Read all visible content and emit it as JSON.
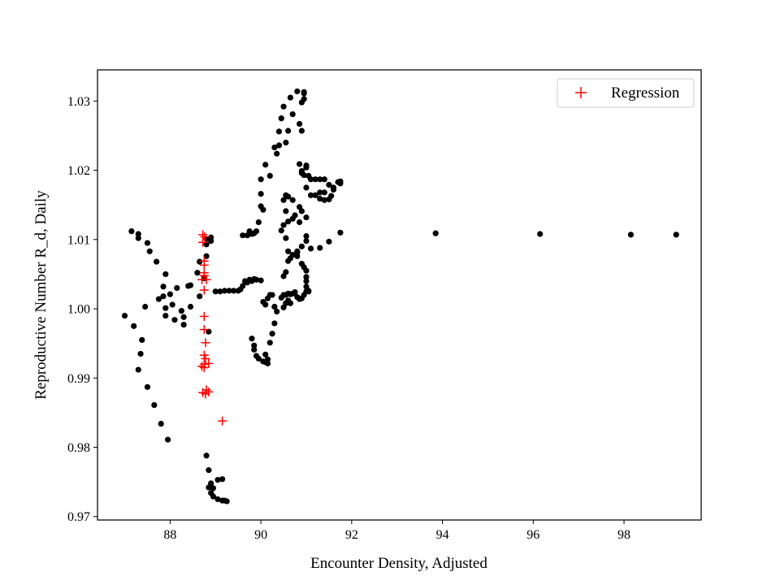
{
  "chart_data": {
    "type": "scatter",
    "title": "",
    "xlabel": "Encounter Density, Adjusted",
    "ylabel": "Reproductive Number R_d, Daily",
    "xlim": [
      86.4,
      99.7
    ],
    "ylim": [
      0.9695,
      1.0345
    ],
    "xticks": [
      88,
      90,
      92,
      94,
      96,
      98
    ],
    "yticks": [
      0.97,
      0.98,
      0.99,
      1.0,
      1.01,
      1.02,
      1.03
    ],
    "xtick_labels": [
      "88",
      "90",
      "92",
      "94",
      "96",
      "98"
    ],
    "ytick_labels": [
      "0.97",
      "0.98",
      "0.99",
      "1.00",
      "1.01",
      "1.02",
      "1.03"
    ],
    "grid": false,
    "legend": {
      "placement": "top-right",
      "entries": [
        "Regression"
      ]
    },
    "series": [
      {
        "marker": "dot",
        "color": "#000000",
        "points": [
          [
            87.0,
            0.999
          ],
          [
            87.2,
            0.9975
          ],
          [
            87.3,
            0.9912
          ],
          [
            87.35,
            0.9935
          ],
          [
            87.38,
            0.9955
          ],
          [
            87.45,
            1.0003
          ],
          [
            87.5,
            0.9887
          ],
          [
            87.65,
            0.9861
          ],
          [
            87.8,
            0.9834
          ],
          [
            87.95,
            0.9811
          ],
          [
            87.15,
            1.0112
          ],
          [
            87.3,
            1.0108
          ],
          [
            87.3,
            1.0102
          ],
          [
            87.5,
            1.0095
          ],
          [
            87.55,
            1.0083
          ],
          [
            87.7,
            1.0068
          ],
          [
            87.75,
            1.0014
          ],
          [
            87.85,
            1.0018
          ],
          [
            87.85,
            1.0032
          ],
          [
            87.9,
            1.005
          ],
          [
            87.9,
            1.0001
          ],
          [
            87.9,
            0.999
          ],
          [
            88.0,
            1.0021
          ],
          [
            88.05,
            1.0006
          ],
          [
            88.1,
            0.9984
          ],
          [
            88.15,
            1.003
          ],
          [
            88.25,
            0.9997
          ],
          [
            88.3,
            0.9988
          ],
          [
            88.3,
            0.9977
          ],
          [
            88.4,
            1.0033
          ],
          [
            88.45,
            1.0034
          ],
          [
            88.45,
            1.0003
          ],
          [
            88.6,
            1.0052
          ],
          [
            88.65,
            1.0018
          ],
          [
            88.65,
            1.0068
          ],
          [
            88.75,
            1.0044
          ],
          [
            88.8,
            1.0076
          ],
          [
            88.8,
            1.0093
          ],
          [
            88.8,
            1.0101
          ],
          [
            88.9,
            1.0103
          ],
          [
            88.9,
            1.0098
          ],
          [
            88.85,
            0.9967
          ],
          [
            88.8,
            0.9788
          ],
          [
            88.85,
            0.9767
          ],
          [
            88.9,
            0.9748
          ],
          [
            88.95,
            0.9741
          ],
          [
            89.05,
            0.9753
          ],
          [
            89.15,
            0.9754
          ],
          [
            88.85,
            0.9742
          ],
          [
            88.9,
            0.9734
          ],
          [
            88.95,
            0.9729
          ],
          [
            89.05,
            0.9725
          ],
          [
            89.15,
            0.9723
          ],
          [
            89.2,
            0.9723
          ],
          [
            89.25,
            0.9722
          ],
          [
            89.0,
            1.0025
          ],
          [
            89.1,
            1.0025
          ],
          [
            89.2,
            1.0026
          ],
          [
            89.3,
            1.0026
          ],
          [
            89.4,
            1.0026
          ],
          [
            89.5,
            1.0026
          ],
          [
            89.55,
            1.0028
          ],
          [
            89.6,
            1.0033
          ],
          [
            89.65,
            1.004
          ],
          [
            89.7,
            1.0038
          ],
          [
            89.75,
            1.0042
          ],
          [
            89.8,
            1.004
          ],
          [
            89.85,
            1.0043
          ],
          [
            89.9,
            1.0042
          ],
          [
            89.6,
            1.0106
          ],
          [
            89.7,
            1.0106
          ],
          [
            89.75,
            1.0112
          ],
          [
            89.8,
            1.0108
          ],
          [
            89.85,
            1.0109
          ],
          [
            89.9,
            1.0112
          ],
          [
            89.95,
            1.0125
          ],
          [
            90.0,
            1.0148
          ],
          [
            90.0,
            1.0166
          ],
          [
            90.0,
            1.0187
          ],
          [
            90.05,
            1.0143
          ],
          [
            90.1,
            1.0208
          ],
          [
            90.2,
            1.0192
          ],
          [
            90.3,
            1.0233
          ],
          [
            90.35,
            1.0224
          ],
          [
            90.4,
            1.0236
          ],
          [
            90.4,
            1.0256
          ],
          [
            90.45,
            1.0275
          ],
          [
            90.5,
            1.0292
          ],
          [
            90.55,
            1.024
          ],
          [
            90.6,
            1.0257
          ],
          [
            90.65,
            1.0305
          ],
          [
            90.7,
            1.0281
          ],
          [
            90.8,
            1.0314
          ],
          [
            90.85,
            1.0267
          ],
          [
            90.9,
            1.0257
          ],
          [
            90.9,
            1.0298
          ],
          [
            90.95,
            1.0303
          ],
          [
            90.95,
            1.0313
          ],
          [
            90.95,
            1.0311
          ],
          [
            90.85,
            1.0209
          ],
          [
            90.9,
            1.0199
          ],
          [
            90.9,
            1.0196
          ],
          [
            90.95,
            1.0193
          ],
          [
            91.0,
            1.0207
          ],
          [
            91.0,
            1.0204
          ],
          [
            91.05,
            1.0192
          ],
          [
            91.1,
            1.0187
          ],
          [
            91.2,
            1.0187
          ],
          [
            91.3,
            1.0187
          ],
          [
            91.4,
            1.0187
          ],
          [
            91.5,
            1.0179
          ],
          [
            91.6,
            1.0175
          ],
          [
            91.7,
            1.0183
          ],
          [
            91.75,
            1.0184
          ],
          [
            91.75,
            1.0181
          ],
          [
            91.0,
            1.0175
          ],
          [
            91.1,
            1.0164
          ],
          [
            91.2,
            1.0164
          ],
          [
            91.3,
            1.0159
          ],
          [
            91.4,
            1.0157
          ],
          [
            91.5,
            1.0158
          ],
          [
            91.55,
            1.0163
          ],
          [
            91.6,
            1.0172
          ],
          [
            91.4,
            1.0168
          ],
          [
            91.3,
            1.0168
          ],
          [
            90.5,
            1.0157
          ],
          [
            90.55,
            1.0164
          ],
          [
            90.6,
            1.0162
          ],
          [
            90.7,
            1.0157
          ],
          [
            90.55,
            1.0141
          ],
          [
            90.5,
            1.0121
          ],
          [
            90.45,
            1.0113
          ],
          [
            90.55,
            1.0102
          ],
          [
            90.6,
            1.0083
          ],
          [
            90.6,
            1.0069
          ],
          [
            90.55,
            1.0053
          ],
          [
            90.5,
            1.0047
          ],
          [
            90.65,
            1.0073
          ],
          [
            90.7,
            1.0078
          ],
          [
            90.8,
            1.0083
          ],
          [
            90.9,
            1.009
          ],
          [
            91.0,
            1.0098
          ],
          [
            91.0,
            1.0105
          ],
          [
            91.1,
            1.0087
          ],
          [
            91.3,
            1.0088
          ],
          [
            91.5,
            1.0097
          ],
          [
            91.75,
            1.011
          ],
          [
            90.6,
            1.0126
          ],
          [
            90.7,
            1.013
          ],
          [
            90.75,
            1.0135
          ],
          [
            90.85,
            1.0147
          ],
          [
            90.9,
            1.0141
          ],
          [
            91.0,
            1.0132
          ],
          [
            90.85,
            1.0125
          ],
          [
            90.8,
            1.0081
          ],
          [
            90.8,
            1.0076
          ],
          [
            90.9,
            1.0065
          ],
          [
            90.95,
            1.006
          ],
          [
            91.0,
            1.0055
          ],
          [
            91.0,
            1.0046
          ],
          [
            91.0,
            1.004
          ],
          [
            91.0,
            1.0032
          ],
          [
            91.0,
            1.0025
          ],
          [
            91.05,
            1.0026
          ],
          [
            91.05,
            1.0025
          ],
          [
            90.0,
            1.0041
          ],
          [
            90.05,
            1.001
          ],
          [
            90.1,
            1.0006
          ],
          [
            90.15,
            1.0015
          ],
          [
            90.2,
            1.002
          ],
          [
            90.25,
            1.002
          ],
          [
            90.3,
            1.0003
          ],
          [
            90.35,
            0.9996
          ],
          [
            90.45,
            1.0016
          ],
          [
            90.5,
            1.002
          ],
          [
            90.55,
            1.002
          ],
          [
            90.6,
            1.0022
          ],
          [
            90.6,
            1.0012
          ],
          [
            90.65,
            1.0021
          ],
          [
            90.7,
            1.0022
          ],
          [
            90.75,
            1.0024
          ],
          [
            90.8,
            1.0017
          ],
          [
            90.85,
            1.0014
          ],
          [
            90.9,
            1.0015
          ],
          [
            90.95,
            1.002
          ],
          [
            90.5,
            1.0002
          ],
          [
            90.55,
            1.0008
          ],
          [
            90.65,
            1.0008
          ],
          [
            89.8,
            0.9957
          ],
          [
            89.85,
            0.9941
          ],
          [
            89.85,
            0.9947
          ],
          [
            89.9,
            0.9932
          ],
          [
            89.95,
            0.9928
          ],
          [
            90.05,
            0.9924
          ],
          [
            90.1,
            0.9923
          ],
          [
            90.15,
            0.9927
          ],
          [
            90.15,
            0.9921
          ],
          [
            90.1,
            0.9934
          ],
          [
            90.2,
            0.9951
          ],
          [
            90.25,
            0.9964
          ],
          [
            90.3,
            0.9979
          ],
          [
            90.3,
            1.0003
          ],
          [
            93.85,
            1.0109
          ],
          [
            96.15,
            1.0108
          ],
          [
            98.15,
            1.0107
          ],
          [
            99.15,
            1.0107
          ]
        ]
      },
      {
        "name": "Regression",
        "marker": "plus",
        "color": "#ff0000",
        "points": [
          [
            88.72,
            1.0107
          ],
          [
            88.76,
            1.0104
          ],
          [
            88.72,
            1.0096
          ],
          [
            88.75,
            1.0069
          ],
          [
            88.75,
            1.0063
          ],
          [
            88.75,
            1.0052
          ],
          [
            88.75,
            1.0048
          ],
          [
            88.7,
            1.0042
          ],
          [
            88.8,
            1.0042
          ],
          [
            88.75,
            1.0027
          ],
          [
            88.75,
            0.9989
          ],
          [
            88.75,
            0.997
          ],
          [
            88.78,
            0.9951
          ],
          [
            88.75,
            0.9933
          ],
          [
            88.78,
            0.9928
          ],
          [
            88.75,
            0.992
          ],
          [
            88.7,
            0.9917
          ],
          [
            88.85,
            0.9921
          ],
          [
            88.75,
            0.9915
          ],
          [
            88.8,
            0.9883
          ],
          [
            88.72,
            0.9879
          ],
          [
            88.78,
            0.9877
          ],
          [
            88.85,
            0.988
          ],
          [
            89.15,
            0.9838
          ]
        ]
      }
    ]
  }
}
